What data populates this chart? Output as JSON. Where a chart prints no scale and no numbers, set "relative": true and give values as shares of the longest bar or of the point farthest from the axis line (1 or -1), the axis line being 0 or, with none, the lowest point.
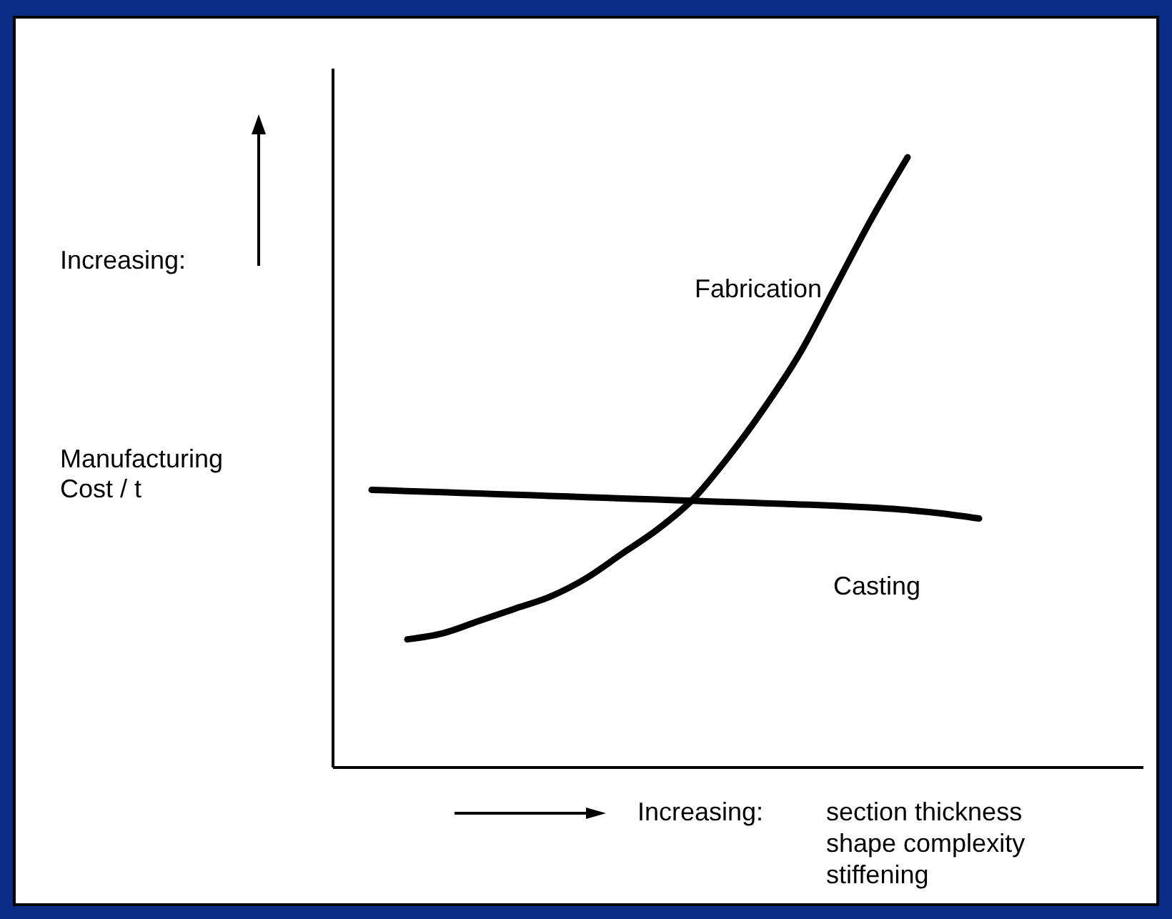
{
  "chart_data": {
    "type": "line",
    "relative": true,
    "legend": false,
    "marker": "none",
    "line_style": "solid",
    "xlabel": "section thickness\nshape complexity\nstiffening",
    "annotations": [
      "Increasing:",
      "Increasing:",
      "Manufacturing\nCost / t"
    ],
    "categories": [
      null,
      null,
      null,
      null,
      null,
      null,
      null,
      null,
      null,
      null,
      null,
      null,
      null,
      null,
      null,
      null,
      null,
      null
    ],
    "series": [
      {
        "name": "Fabrication",
        "color": "#000000",
        "values": [
          null,
          0.21,
          0.22,
          0.24,
          0.26,
          0.28,
          0.31,
          0.35,
          0.39,
          0.44,
          0.51,
          0.59,
          0.68,
          0.79,
          0.9,
          1,
          null,
          null
        ]
      },
      {
        "name": "Casting",
        "color": "#000000",
        "values": [
          0.455,
          0.453,
          0.451,
          0.449,
          0.447,
          0.445,
          0.443,
          0.441,
          0.439,
          0.437,
          0.435,
          0.433,
          0.431,
          0.429,
          0.426,
          0.422,
          0.416,
          0.408
        ]
      }
    ]
  }
}
